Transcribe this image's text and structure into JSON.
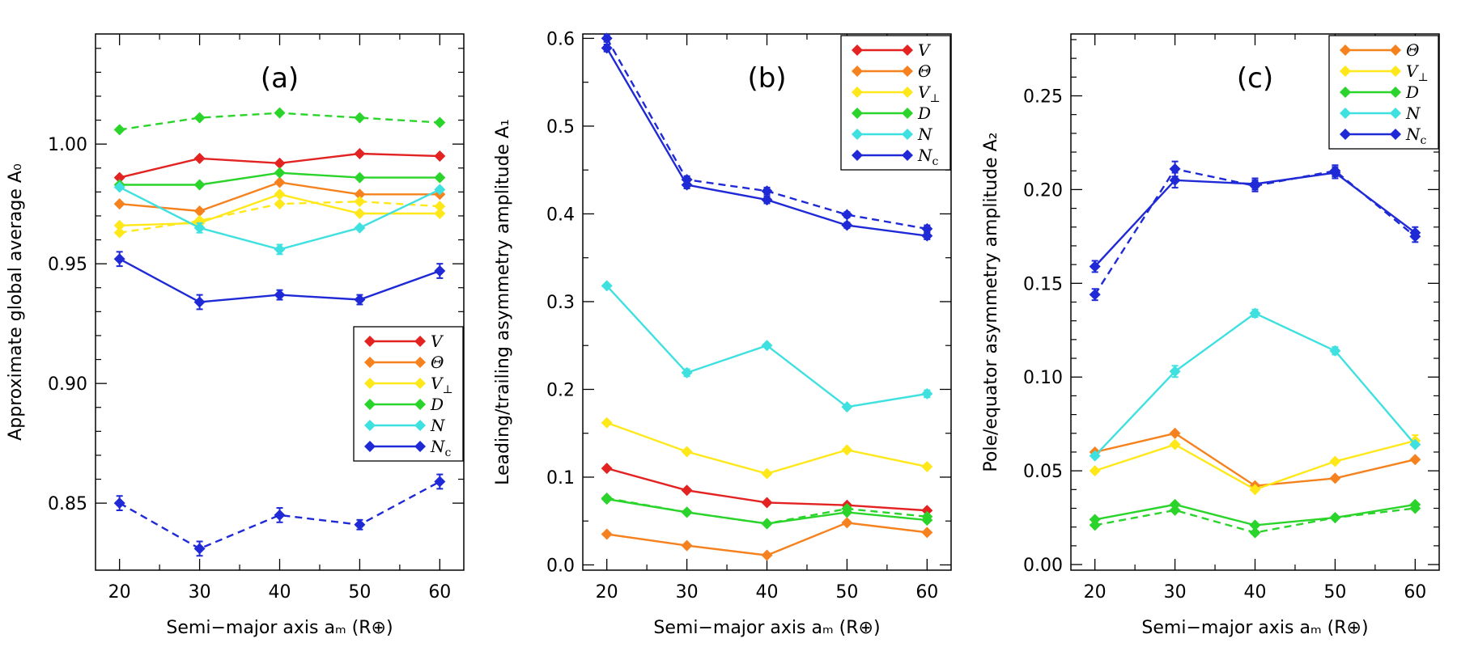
{
  "chart_data": [
    {
      "type": "line",
      "title": "(a)",
      "xlabel": "Semi−major axis aₘ (R⊕)",
      "ylabel": "Approximate global average A₀",
      "x": [
        20,
        30,
        40,
        50,
        60
      ],
      "xlim": [
        17,
        63
      ],
      "ylim": [
        0.822,
        1.046
      ],
      "xticks": [
        20,
        30,
        40,
        50,
        60
      ],
      "xticks_minor": [
        25,
        35,
        45,
        55
      ],
      "yticks": [
        0.85,
        0.9,
        0.95,
        1.0
      ],
      "yticks_minor": [
        0.86,
        0.87,
        0.88,
        0.89,
        0.91,
        0.92,
        0.93,
        0.94,
        0.96,
        0.97,
        0.98,
        0.99,
        1.01,
        1.02,
        1.03,
        1.04
      ],
      "ytick_labels": [
        "0.85",
        "0.90",
        "0.95",
        "1.00"
      ],
      "legend": {
        "placement": "center-right",
        "entries": [
          {
            "label": "V",
            "sub": "",
            "color": "#e32222"
          },
          {
            "label": "Θ",
            "sub": "",
            "color": "#f5821e"
          },
          {
            "label": "V",
            "sub": "⊥",
            "color": "#ffe81a"
          },
          {
            "label": "D",
            "sub": "",
            "color": "#2ad42a"
          },
          {
            "label": "N",
            "sub": "",
            "color": "#3fe0e0"
          },
          {
            "label": "N",
            "sub": "c",
            "color": "#1f2ad6"
          }
        ]
      },
      "series": [
        {
          "name": "V",
          "color": "#e32222",
          "style": "solid",
          "values": [
            0.986,
            0.994,
            0.992,
            0.996,
            0.995
          ],
          "errors": [
            0,
            0,
            0,
            0,
            0
          ]
        },
        {
          "name": "Θ",
          "color": "#f5821e",
          "style": "solid",
          "values": [
            0.975,
            0.972,
            0.984,
            0.979,
            0.979
          ],
          "errors": [
            0,
            0,
            0,
            0,
            0
          ]
        },
        {
          "name": "V⊥",
          "color": "#ffe81a",
          "style": "solid",
          "values": [
            0.966,
            0.967,
            0.979,
            0.971,
            0.971
          ],
          "errors": [
            0,
            0,
            0,
            0,
            0
          ]
        },
        {
          "name": "V⊥ (dashed)",
          "color": "#ffe81a",
          "style": "dashed",
          "values": [
            0.963,
            0.968,
            0.975,
            0.976,
            0.974
          ],
          "errors": [
            0,
            0,
            0,
            0,
            0
          ]
        },
        {
          "name": "D",
          "color": "#2ad42a",
          "style": "solid",
          "values": [
            0.983,
            0.983,
            0.988,
            0.986,
            0.986
          ],
          "errors": [
            0,
            0,
            0,
            0,
            0
          ]
        },
        {
          "name": "D (dashed)",
          "color": "#2ad42a",
          "style": "dashed",
          "values": [
            1.006,
            1.011,
            1.013,
            1.011,
            1.009
          ],
          "errors": [
            0,
            0,
            0,
            0,
            0
          ]
        },
        {
          "name": "N",
          "color": "#3fe0e0",
          "style": "solid",
          "values": [
            0.982,
            0.965,
            0.956,
            0.965,
            0.981
          ],
          "errors": [
            0,
            0.002,
            0.002,
            0,
            0
          ]
        },
        {
          "name": "Nᴄ",
          "color": "#1f2ad6",
          "style": "solid",
          "values": [
            0.952,
            0.934,
            0.937,
            0.935,
            0.947
          ],
          "errors": [
            0.003,
            0.003,
            0.002,
            0.002,
            0.003
          ]
        },
        {
          "name": "Nᴄ (dashed)",
          "color": "#1f2ad6",
          "style": "dashed",
          "values": [
            0.85,
            0.831,
            0.845,
            0.841,
            0.859
          ],
          "errors": [
            0.003,
            0.003,
            0.003,
            0.002,
            0.003
          ]
        }
      ]
    },
    {
      "type": "line",
      "title": "(b)",
      "xlabel": "Semi−major axis aₘ (R⊕)",
      "ylabel": "Leading/trailing asymmetry amplitude A₁",
      "x": [
        20,
        30,
        40,
        50,
        60
      ],
      "xlim": [
        17,
        63
      ],
      "ylim": [
        -0.006,
        0.605
      ],
      "xticks": [
        20,
        30,
        40,
        50,
        60
      ],
      "xticks_minor": [
        25,
        35,
        45,
        55
      ],
      "yticks": [
        0.0,
        0.1,
        0.2,
        0.3,
        0.4,
        0.5,
        0.6
      ],
      "yticks_minor": [
        0.05,
        0.15,
        0.25,
        0.35,
        0.45,
        0.55
      ],
      "ytick_labels": [
        "0.0",
        "0.1",
        "0.2",
        "0.3",
        "0.4",
        "0.5",
        "0.6"
      ],
      "legend": {
        "placement": "top-right",
        "entries": [
          {
            "label": "V",
            "sub": "",
            "color": "#e32222"
          },
          {
            "label": "Θ",
            "sub": "",
            "color": "#f5821e"
          },
          {
            "label": "V",
            "sub": "⊥",
            "color": "#ffe81a"
          },
          {
            "label": "D",
            "sub": "",
            "color": "#2ad42a"
          },
          {
            "label": "N",
            "sub": "",
            "color": "#3fe0e0"
          },
          {
            "label": "N",
            "sub": "c",
            "color": "#1f2ad6"
          }
        ]
      },
      "series": [
        {
          "name": "V",
          "color": "#e32222",
          "style": "solid",
          "values": [
            0.11,
            0.085,
            0.071,
            0.068,
            0.062
          ],
          "errors": [
            0,
            0,
            0,
            0,
            0
          ]
        },
        {
          "name": "Θ",
          "color": "#f5821e",
          "style": "solid",
          "values": [
            0.035,
            0.022,
            0.011,
            0.048,
            0.037
          ],
          "errors": [
            0,
            0,
            0,
            0,
            0
          ]
        },
        {
          "name": "V⊥",
          "color": "#ffe81a",
          "style": "solid",
          "values": [
            0.162,
            0.129,
            0.104,
            0.131,
            0.112
          ],
          "errors": [
            0,
            0,
            0,
            0,
            0
          ]
        },
        {
          "name": "D",
          "color": "#2ad42a",
          "style": "solid",
          "values": [
            0.075,
            0.06,
            0.047,
            0.06,
            0.051
          ],
          "errors": [
            0,
            0,
            0,
            0,
            0
          ]
        },
        {
          "name": "D (dashed)",
          "color": "#2ad42a",
          "style": "dashed",
          "values": [
            0.076,
            0.06,
            0.047,
            0.064,
            0.055
          ],
          "errors": [
            0,
            0,
            0,
            0,
            0
          ]
        },
        {
          "name": "N",
          "color": "#3fe0e0",
          "style": "solid",
          "values": [
            0.318,
            0.219,
            0.25,
            0.18,
            0.195
          ],
          "errors": [
            0,
            0.004,
            0,
            0,
            0.004
          ]
        },
        {
          "name": "Nᴄ",
          "color": "#1f2ad6",
          "style": "solid",
          "values": [
            0.589,
            0.433,
            0.416,
            0.387,
            0.375
          ],
          "errors": [
            0.004,
            0.004,
            0.004,
            0.003,
            0.004
          ]
        },
        {
          "name": "Nᴄ (dashed)",
          "color": "#1f2ad6",
          "style": "dashed",
          "values": [
            0.6,
            0.439,
            0.426,
            0.399,
            0.383
          ],
          "errors": [
            0.004,
            0.004,
            0.004,
            0.003,
            0.004
          ]
        }
      ]
    },
    {
      "type": "line",
      "title": "(c)",
      "xlabel": "Semi−major axis aₘ (R⊕)",
      "ylabel": "Pole/equator asymmetry amplitude A₂",
      "x": [
        20,
        30,
        40,
        50,
        60
      ],
      "xlim": [
        17,
        63
      ],
      "ylim": [
        -0.003,
        0.283
      ],
      "xticks": [
        20,
        30,
        40,
        50,
        60
      ],
      "xticks_minor": [
        25,
        35,
        45,
        55
      ],
      "yticks": [
        0.0,
        0.05,
        0.1,
        0.15,
        0.2,
        0.25
      ],
      "yticks_minor": [
        0.01,
        0.02,
        0.03,
        0.04,
        0.06,
        0.07,
        0.08,
        0.09,
        0.11,
        0.12,
        0.13,
        0.14,
        0.16,
        0.17,
        0.18,
        0.19,
        0.21,
        0.22,
        0.23,
        0.24,
        0.26,
        0.27,
        0.28
      ],
      "ytick_labels": [
        "0.00",
        "0.05",
        "0.10",
        "0.15",
        "0.20",
        "0.25"
      ],
      "legend": {
        "placement": "top-right",
        "entries": [
          {
            "label": "Θ",
            "sub": "",
            "color": "#f5821e"
          },
          {
            "label": "V",
            "sub": "⊥",
            "color": "#ffe81a"
          },
          {
            "label": "D",
            "sub": "",
            "color": "#2ad42a"
          },
          {
            "label": "N",
            "sub": "",
            "color": "#3fe0e0"
          },
          {
            "label": "N",
            "sub": "c",
            "color": "#1f2ad6"
          }
        ]
      },
      "series": [
        {
          "name": "Θ",
          "color": "#f5821e",
          "style": "solid",
          "values": [
            0.06,
            0.07,
            0.042,
            0.046,
            0.056
          ],
          "errors": [
            0,
            0,
            0,
            0,
            0
          ]
        },
        {
          "name": "V⊥",
          "color": "#ffe81a",
          "style": "solid",
          "values": [
            0.05,
            0.064,
            0.04,
            0.055,
            0.066
          ],
          "errors": [
            0,
            0,
            0,
            0,
            0.003
          ]
        },
        {
          "name": "D",
          "color": "#2ad42a",
          "style": "solid",
          "values": [
            0.024,
            0.032,
            0.021,
            0.025,
            0.032
          ],
          "errors": [
            0,
            0,
            0,
            0,
            0
          ]
        },
        {
          "name": "D (dashed)",
          "color": "#2ad42a",
          "style": "dashed",
          "values": [
            0.021,
            0.029,
            0.017,
            0.025,
            0.03
          ],
          "errors": [
            0,
            0,
            0,
            0,
            0
          ]
        },
        {
          "name": "N",
          "color": "#3fe0e0",
          "style": "solid",
          "values": [
            0.058,
            0.103,
            0.134,
            0.114,
            0.064
          ],
          "errors": [
            0,
            0.003,
            0.002,
            0.002,
            0
          ]
        },
        {
          "name": "Nᴄ",
          "color": "#1f2ad6",
          "style": "solid",
          "values": [
            0.159,
            0.205,
            0.203,
            0.209,
            0.177
          ],
          "errors": [
            0.003,
            0.004,
            0.003,
            0.003,
            0.003
          ]
        },
        {
          "name": "Nᴄ (dashed)",
          "color": "#1f2ad6",
          "style": "dashed",
          "values": [
            0.144,
            0.211,
            0.202,
            0.21,
            0.175
          ],
          "errors": [
            0.003,
            0.004,
            0.003,
            0.003,
            0.003
          ]
        }
      ]
    }
  ]
}
